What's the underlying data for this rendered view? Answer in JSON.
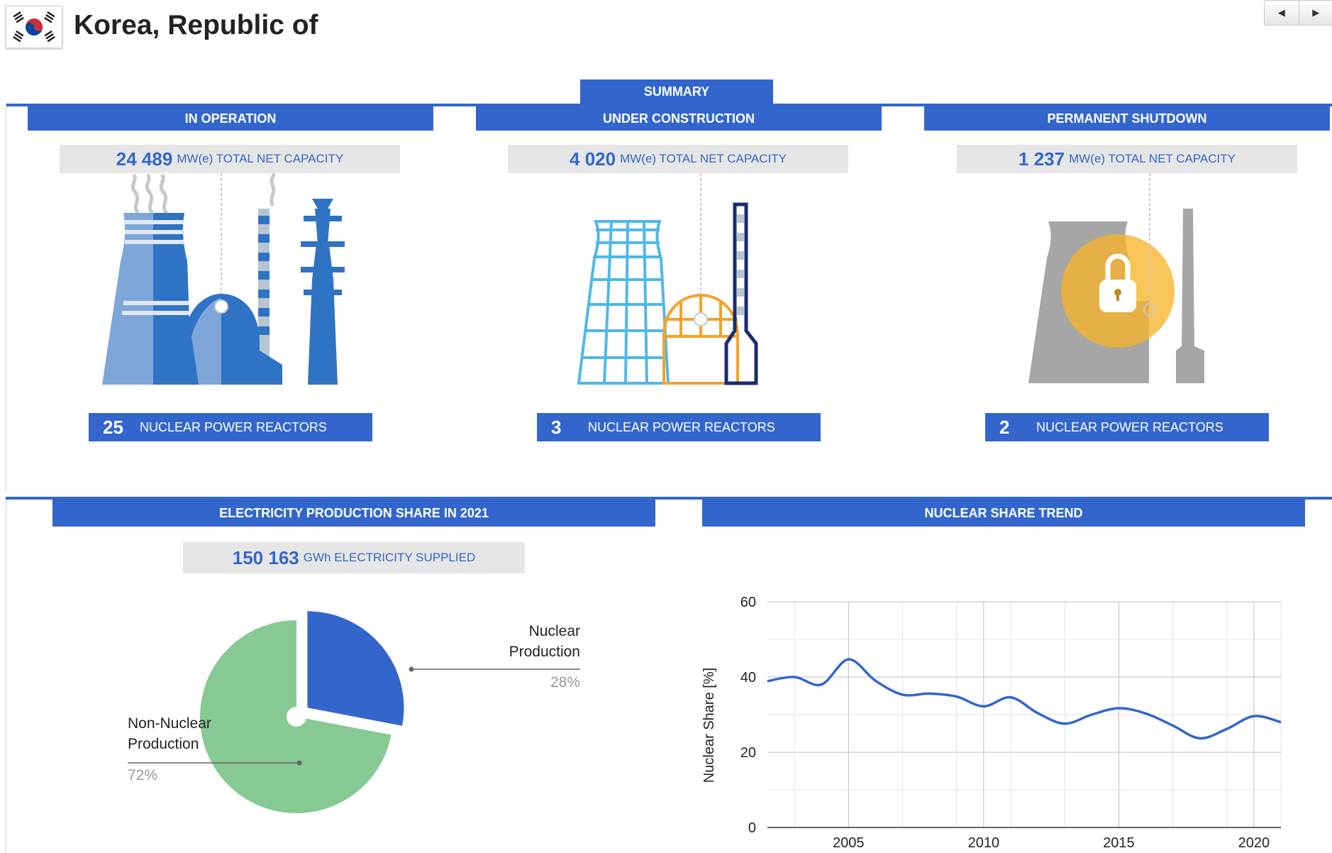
{
  "country": {
    "name": "Korea, Republic of",
    "flag_icon": "korea-flag-icon"
  },
  "nav": {
    "prev_symbol": "◀",
    "next_symbol": "▶"
  },
  "summary": {
    "title": "SUMMARY",
    "sections": [
      {
        "title": "IN OPERATION",
        "capacity_value": "24 489",
        "capacity_label": "MW(e) TOTAL NET CAPACITY",
        "reactors_count": "25",
        "reactors_label": "NUCLEAR POWER REACTORS",
        "icon": "operating-plant-icon"
      },
      {
        "title": "UNDER CONSTRUCTION",
        "capacity_value": "4 020",
        "capacity_label": "MW(e) TOTAL NET CAPACITY",
        "reactors_count": "3",
        "reactors_label": "NUCLEAR POWER REACTORS",
        "icon": "construction-plant-icon"
      },
      {
        "title": "PERMANENT SHUTDOWN",
        "capacity_value": "1 237",
        "capacity_label": "MW(e) TOTAL NET CAPACITY",
        "reactors_count": "2",
        "reactors_label": "NUCLEAR POWER REACTORS",
        "icon": "shutdown-plant-icon"
      }
    ]
  },
  "electricity": {
    "title": "ELECTRICITY PRODUCTION SHARE IN 2021",
    "supplied_value": "150 163",
    "supplied_label": "GWh ELECTRICITY SUPPLIED"
  },
  "trend": {
    "title": "NUCLEAR SHARE TREND"
  },
  "chart_data": [
    {
      "type": "pie",
      "slices": [
        {
          "label_line1": "Nuclear",
          "label_line2": "Production",
          "percent_label": "28%",
          "value": 28,
          "color": "#3366cc"
        },
        {
          "label_line1": "Non-Nuclear",
          "label_line2": "Production",
          "percent_label": "72%",
          "value": 72,
          "color": "#86c993"
        }
      ]
    },
    {
      "type": "line",
      "ylabel": "Nuclear Share [%]",
      "xlabel": "",
      "xlim": [
        2002,
        2021
      ],
      "ylim": [
        0,
        60
      ],
      "yticks": [
        0,
        20,
        40,
        60
      ],
      "xticks": [
        2005,
        2010,
        2015,
        2020
      ],
      "grid": true,
      "series": [
        {
          "color": "#3366cc",
          "x": [
            2002,
            2003,
            2004,
            2005,
            2006,
            2007,
            2008,
            2009,
            2010,
            2011,
            2012,
            2013,
            2014,
            2015,
            2016,
            2017,
            2018,
            2019,
            2020,
            2021
          ],
          "y": [
            38.9,
            40.0,
            38.0,
            44.7,
            39.0,
            35.3,
            35.6,
            34.8,
            32.2,
            34.6,
            30.4,
            27.6,
            30.0,
            31.7,
            30.3,
            27.1,
            23.7,
            26.2,
            29.6,
            28.0
          ]
        }
      ]
    }
  ]
}
